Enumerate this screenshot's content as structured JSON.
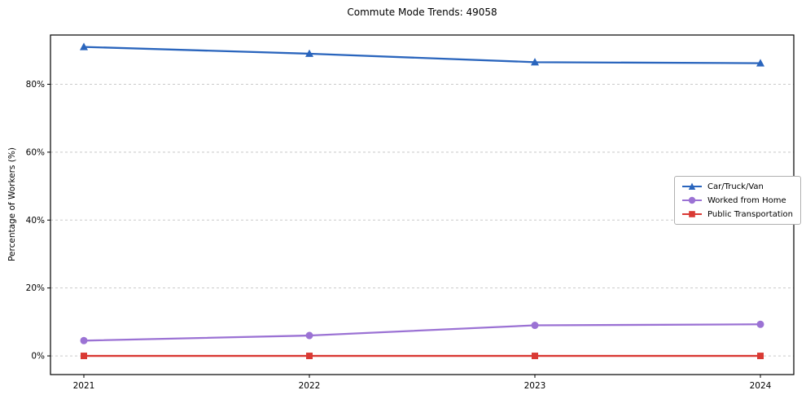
{
  "title": "Commute Mode Trends: 49058",
  "chart_data": {
    "type": "line",
    "title": "Commute Mode Trends: 49058",
    "xlabel": "",
    "ylabel": "Percentage of Workers (%)",
    "x_labels": [
      "2021",
      "2022",
      "2023",
      "2024"
    ],
    "y_ticks": [
      0,
      20,
      40,
      60,
      80
    ],
    "y_tick_labels": [
      "0%",
      "20%",
      "40%",
      "60%",
      "80%"
    ],
    "ylim": [
      -5.5,
      94.5
    ],
    "grid": true,
    "grid_style": "dashed",
    "legend_position": "middle-right",
    "series": [
      {
        "name": "Car/Truck/Van",
        "color": "#2a65bd",
        "marker": "triangle",
        "values": [
          91,
          89,
          86.5,
          86.2
        ]
      },
      {
        "name": "Worked from Home",
        "color": "#9b72d4",
        "marker": "circle",
        "values": [
          4.5,
          6,
          9,
          9.3
        ]
      },
      {
        "name": "Public Transportation",
        "color": "#d93a34",
        "marker": "square",
        "values": [
          0,
          0,
          0,
          0
        ]
      }
    ]
  }
}
